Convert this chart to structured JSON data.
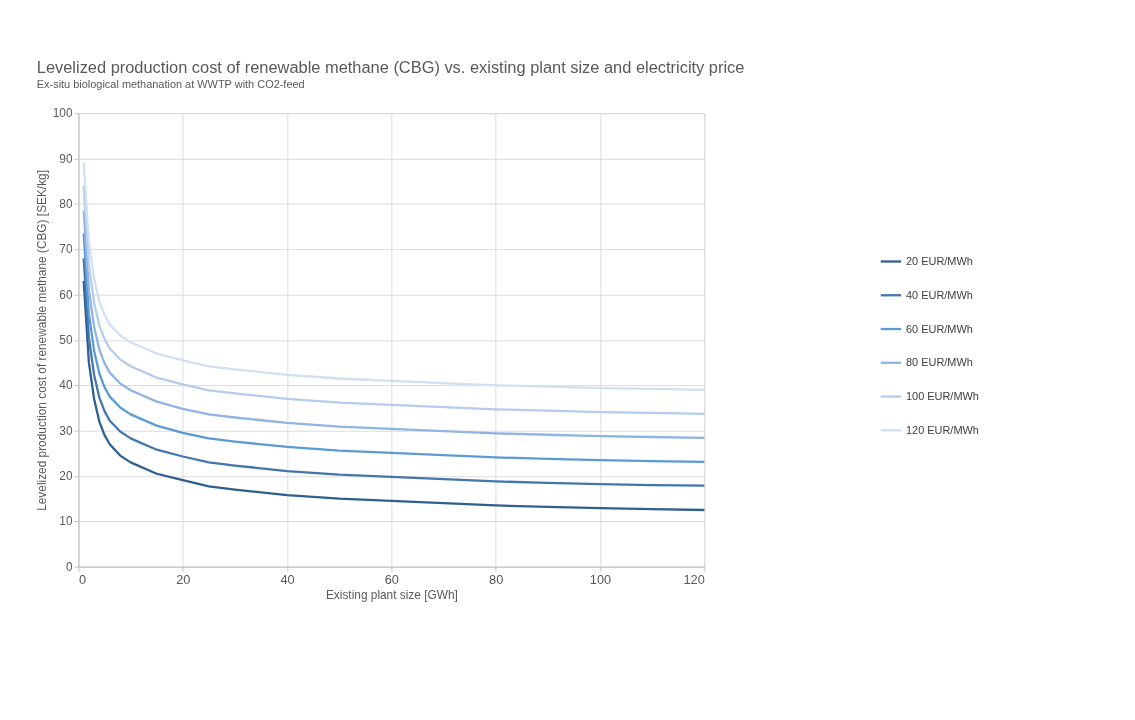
{
  "chart_data": {
    "type": "line",
    "title": "Levelized production cost of renewable methane (CBG) vs. existing plant size and electricity price",
    "subtitle": "Ex-situ biological methanation at WWTP with CO2-feed",
    "xlabel": "Existing plant size [GWh]",
    "ylabel": "Levelized production cost of renewable methane (CBG) [SEK/kg]",
    "x": [
      1,
      2,
      3,
      4,
      5,
      6,
      8,
      10,
      15,
      20,
      25,
      30,
      40,
      50,
      60,
      70,
      80,
      90,
      100,
      110,
      120
    ],
    "series": [
      {
        "name": "20 EUR/MWh",
        "color": "#2f5f8f",
        "values": [
          63,
          45,
          37,
          32,
          29,
          27,
          24.5,
          23,
          20.5,
          19.1,
          17.7,
          17,
          15.8,
          15,
          14.5,
          14,
          13.5,
          13.2,
          12.9,
          12.7,
          12.5
        ]
      },
      {
        "name": "40 EUR/MWh",
        "color": "#4376ad",
        "values": [
          68,
          50.5,
          42.3,
          37.3,
          34.3,
          32.2,
          29.8,
          28.3,
          25.8,
          24.3,
          23,
          22.3,
          21.1,
          20.3,
          19.8,
          19.3,
          18.8,
          18.5,
          18.2,
          18,
          17.9
        ]
      },
      {
        "name": "60 EUR/MWh",
        "color": "#5b9bd5",
        "values": [
          73.5,
          55.8,
          47.6,
          42.6,
          39.6,
          37.5,
          35.1,
          33.6,
          31.1,
          29.5,
          28.3,
          27.6,
          26.4,
          25.6,
          25.1,
          24.6,
          24.1,
          23.8,
          23.5,
          23.3,
          23.1
        ]
      },
      {
        "name": "80 EUR/MWh",
        "color": "#8fb4e3",
        "values": [
          78.5,
          61,
          52.9,
          47.9,
          44.9,
          42.8,
          40.4,
          38.9,
          36.4,
          34.8,
          33.6,
          32.9,
          31.7,
          30.9,
          30.4,
          29.9,
          29.4,
          29.1,
          28.8,
          28.6,
          28.4
        ]
      },
      {
        "name": "100 EUR/MWh",
        "color": "#b4cdec",
        "values": [
          84,
          66.3,
          58.2,
          53.2,
          50.2,
          48.1,
          45.7,
          44.2,
          41.7,
          40.2,
          38.9,
          38.2,
          37,
          36.2,
          35.7,
          35.2,
          34.7,
          34.4,
          34.1,
          33.9,
          33.7
        ]
      },
      {
        "name": "120 EUR/MWh",
        "color": "#d0dff2",
        "values": [
          89,
          71.5,
          63.5,
          58.5,
          55.5,
          53.4,
          51,
          49.5,
          47,
          45.5,
          44.2,
          43.5,
          42.3,
          41.5,
          41,
          40.5,
          40,
          39.7,
          39.4,
          39.2,
          39.0
        ]
      }
    ],
    "xlim": [
      0,
      120
    ],
    "xticks": [
      0,
      20,
      40,
      60,
      80,
      100,
      120
    ],
    "ylim": [
      0,
      100
    ],
    "yticks": [
      0,
      10,
      20,
      30,
      40,
      50,
      60,
      70,
      80,
      90,
      100
    ],
    "grid": true,
    "legend": "right",
    "marker": "none",
    "line_style": "solid"
  }
}
